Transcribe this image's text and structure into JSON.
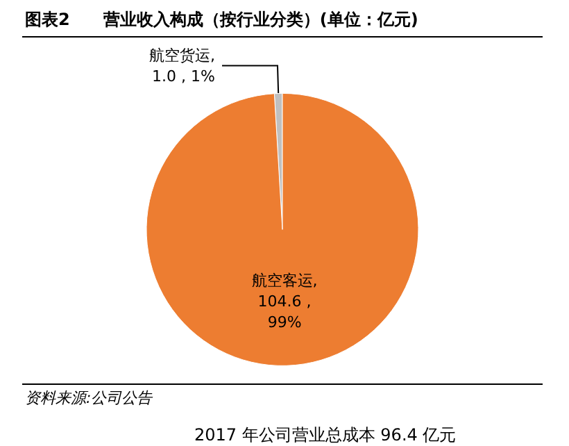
{
  "chart_data": {
    "type": "pie",
    "title": "图表2　　营业收入构成（按行业分类）(单位：亿元)",
    "categories": [
      "航空货运",
      "航空客运"
    ],
    "values": [
      1.0,
      104.6
    ],
    "colors": [
      "#c0c0c0",
      "#ed7d31"
    ],
    "value_labels": [
      ",\n1.0 , 1%",
      ",\n104.6 ,\n99%"
    ],
    "legend": false,
    "annotations": [
      "资料来源:公司公告",
      "2017 年公司营业总成本 96.4 亿元"
    ]
  }
}
